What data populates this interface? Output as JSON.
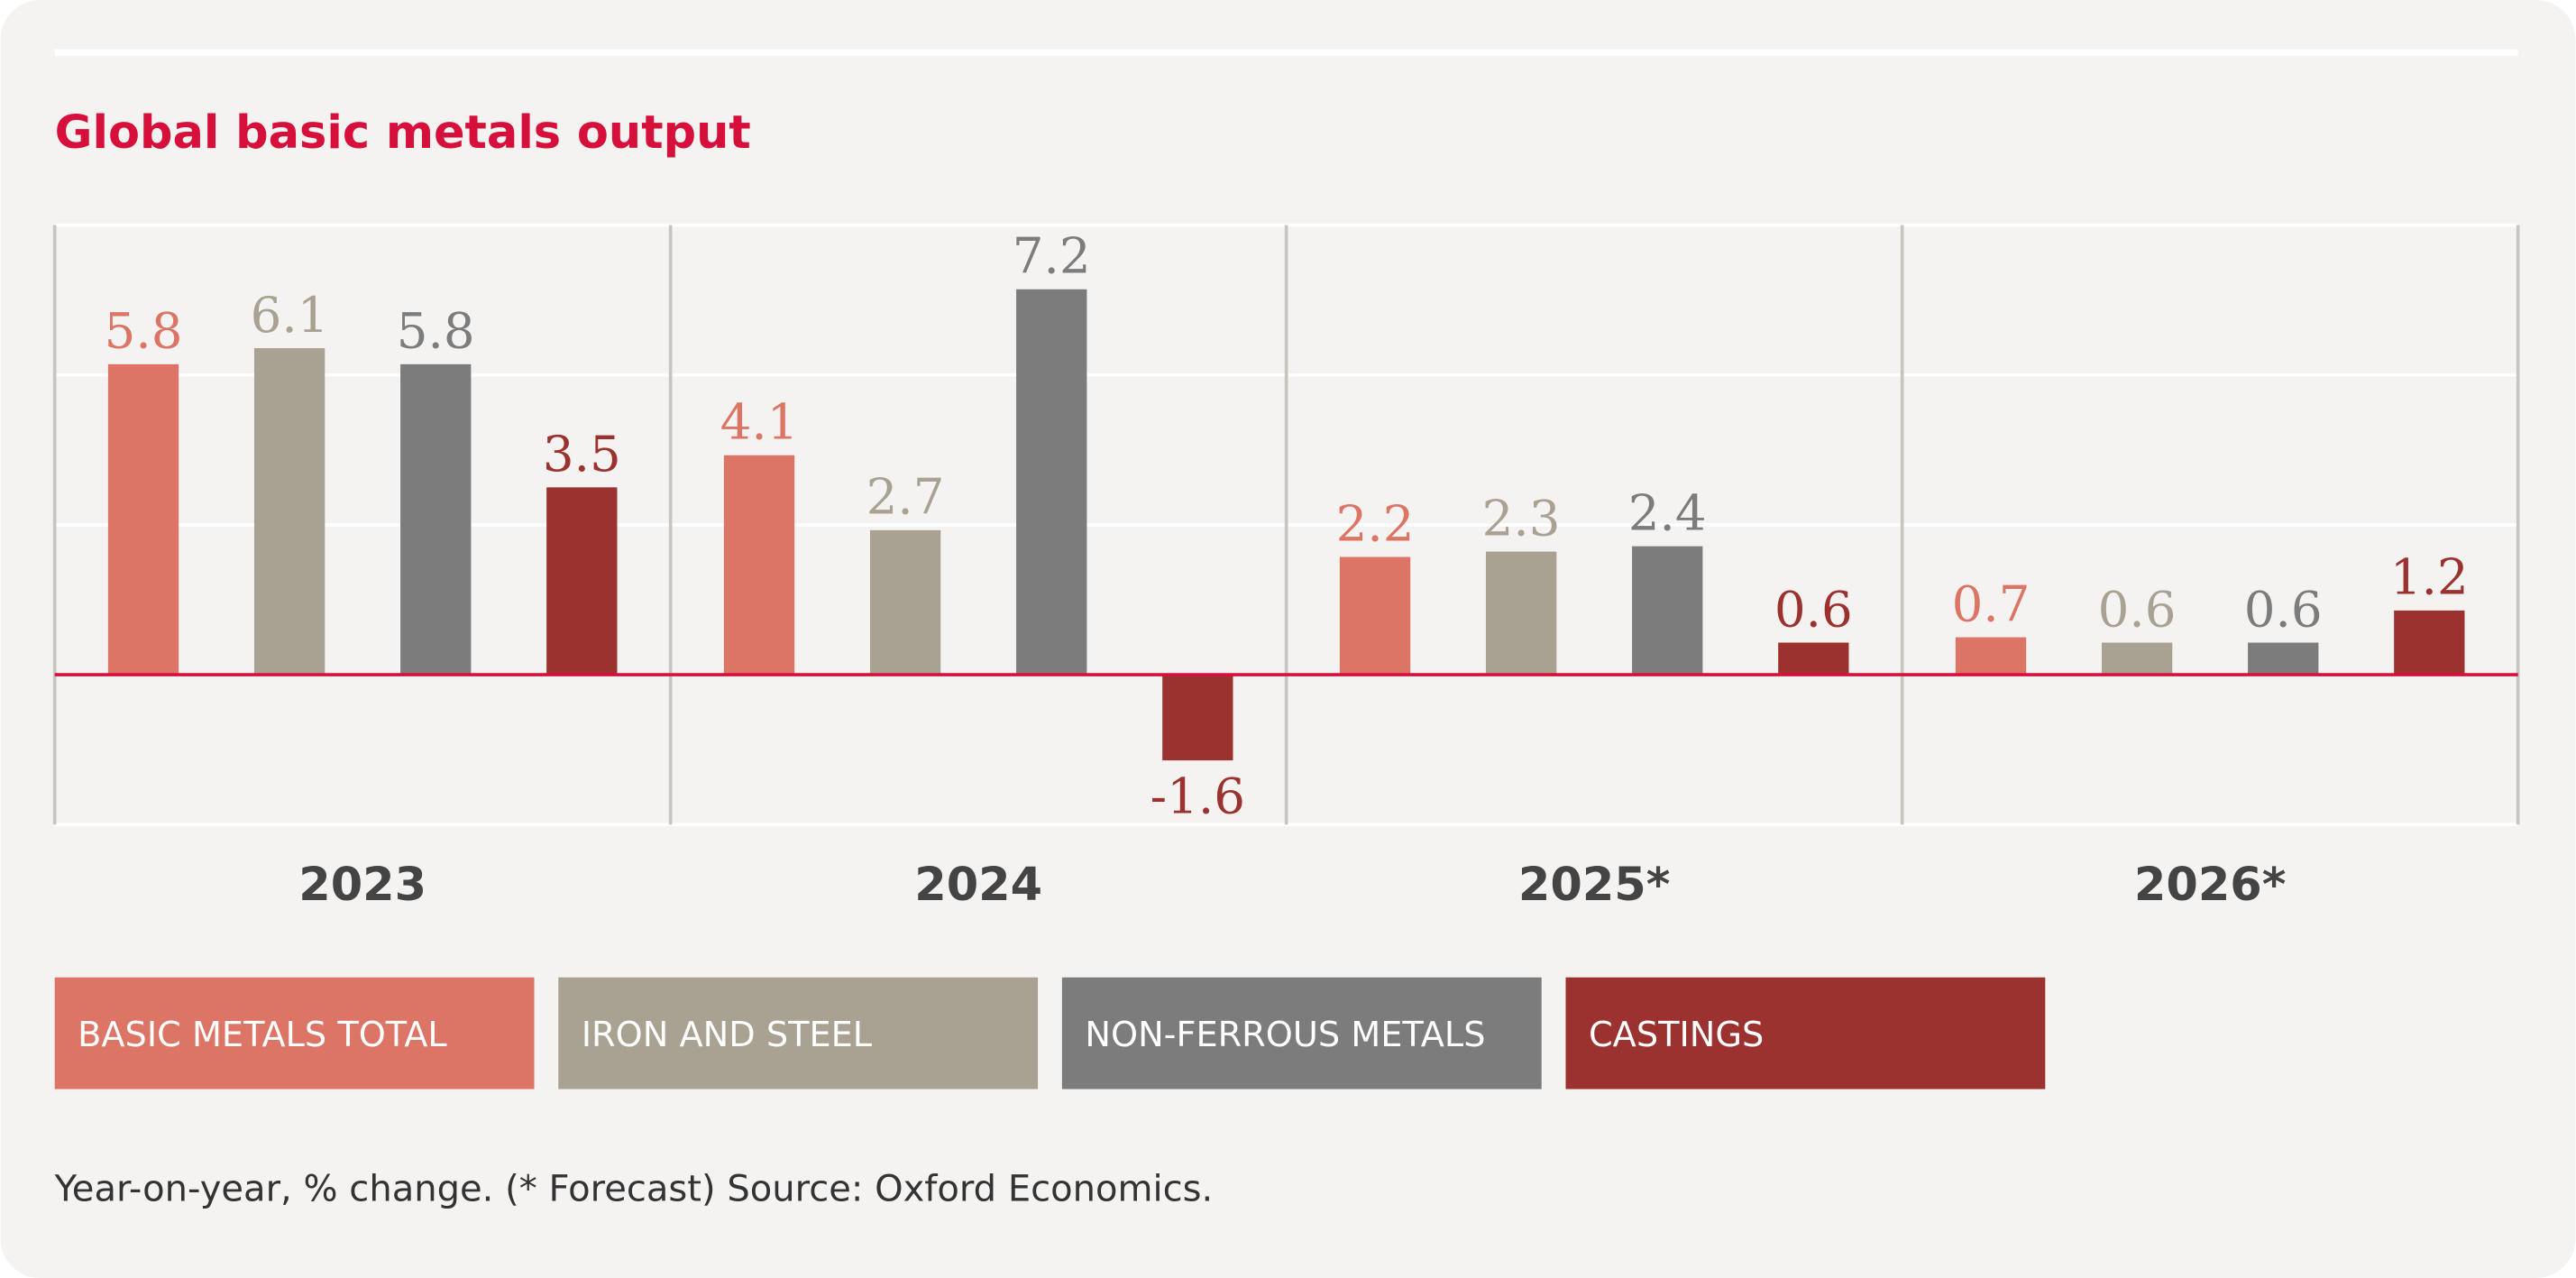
{
  "chart_data": {
    "type": "bar",
    "title": "Global basic metals output",
    "categories": [
      "2023",
      "2024",
      "2025*",
      "2026*"
    ],
    "series": [
      {
        "name": "BASIC METALS TOTAL",
        "color": "#dc7565",
        "values": [
          5.8,
          4.1,
          2.2,
          0.7
        ]
      },
      {
        "name": "IRON AND STEEL",
        "color": "#a9a293",
        "values": [
          6.1,
          2.7,
          2.3,
          0.6
        ]
      },
      {
        "name": "NON-FERROUS METALS",
        "color": "#7c7c7c",
        "values": [
          5.8,
          7.2,
          2.4,
          0.6
        ]
      },
      {
        "name": "CASTINGS",
        "color": "#9c3230",
        "values": [
          3.5,
          -1.6,
          0.6,
          1.2
        ]
      }
    ],
    "ylim": [
      -2.8,
      8.4
    ],
    "yticks": [
      -2.8,
      0,
      2.8,
      5.6,
      8.4
    ],
    "grid": true,
    "note": "Year-on-year, % change. (* Forecast) Source: Oxford Economics."
  }
}
